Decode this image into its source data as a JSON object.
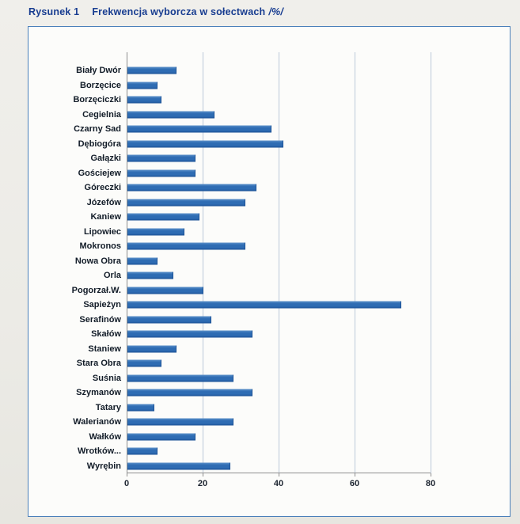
{
  "figure": {
    "label": "Rysunek 1",
    "caption": "Frekwencja wyborcza w sołectwach",
    "unit": "/%/"
  },
  "chart_data": {
    "type": "bar",
    "orientation": "horizontal",
    "title": "Frekwencja wyborcza w sołectwach /%/",
    "categories": [
      "Biały Dwór",
      "Borzęcice",
      "Borzęciczki",
      "Cegielnia",
      "Czarny Sad",
      "Dębiogóra",
      "Gałązki",
      "Gościejew",
      "Góreczki",
      "Józefów",
      "Kaniew",
      "Lipowiec",
      "Mokronos",
      "Nowa Obra",
      "Orla",
      "Pogorzał.W.",
      "Sapieżyn",
      "Serafinów",
      "Skałów",
      "Staniew",
      "Stara Obra",
      "Suśnia",
      "Szymanów",
      "Tatary",
      "Walerianów",
      "Wałków",
      "Wrotków...",
      "Wyrębin"
    ],
    "values": [
      13,
      8,
      9,
      23,
      38,
      41,
      18,
      18,
      34,
      31,
      19,
      15,
      31,
      8,
      12,
      20,
      72,
      22,
      33,
      13,
      9,
      28,
      33,
      7,
      28,
      18,
      8,
      27
    ],
    "xlabel": "",
    "ylabel": "",
    "xlim": [
      0,
      80
    ],
    "xticks": [
      0,
      20,
      40,
      60,
      80
    ],
    "grid": true,
    "legend": "none"
  },
  "colors": {
    "title": "#173c90",
    "chart_border": "#4b80ba",
    "bar": "#2e6cb3",
    "gridline": "#bcc9d9",
    "axis": "#8f8f8f"
  }
}
